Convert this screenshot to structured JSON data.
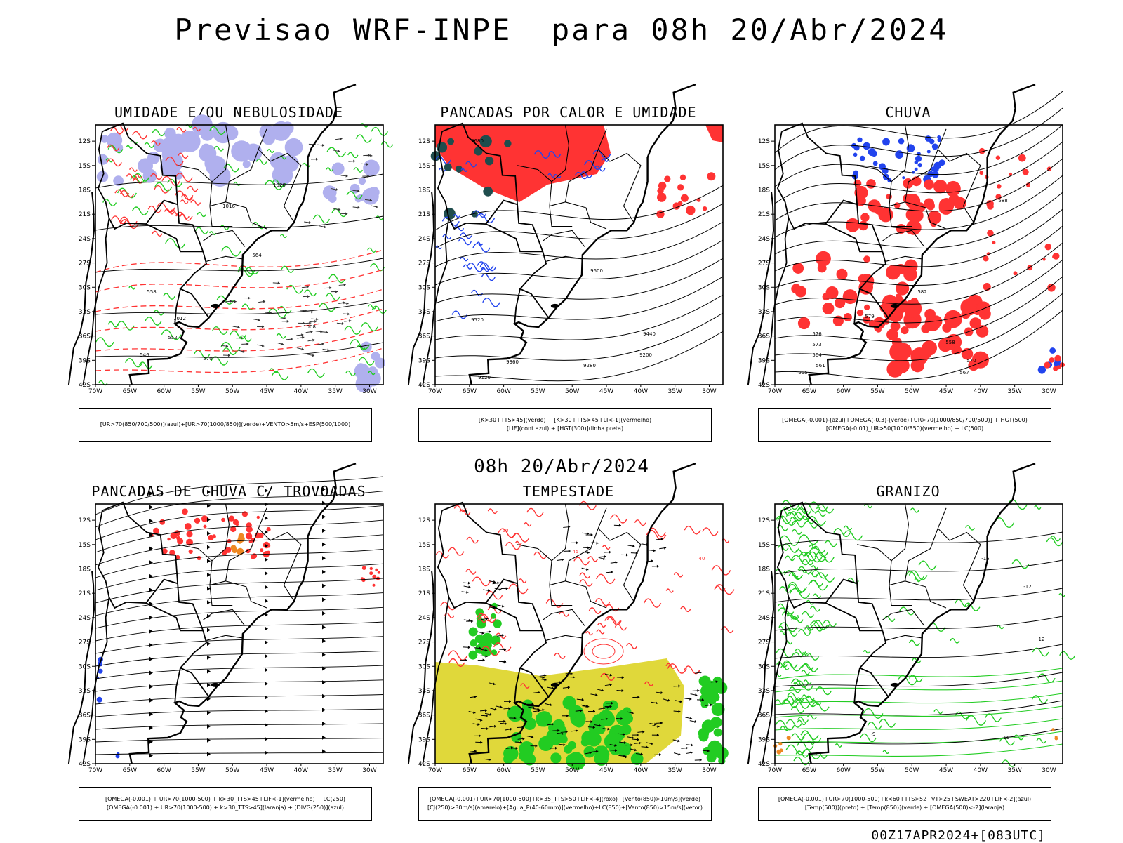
{
  "header": {
    "title": "Previsao WRF-INPE  para 08h 20/Abr/2024",
    "middle_time": "08h 20/Abr/2024",
    "footer": "00Z17APR2024+[083UTC]"
  },
  "axes": {
    "lat_ticks": [
      "12S",
      "15S",
      "18S",
      "21S",
      "24S",
      "27S",
      "30S",
      "33S",
      "36S",
      "39S",
      "42S"
    ],
    "lon_ticks": [
      "70W",
      "65W",
      "60W",
      "55W",
      "50W",
      "45W",
      "40W",
      "35W",
      "30W"
    ]
  },
  "panels": [
    {
      "id": "umidade",
      "title": "UMIDADE E/OU NEBULOSIDADE",
      "legend": [
        "[UR>70(850/700/500)](azul)+[UR>70(1000/850)](verde)+VENTO>5m/s+ESP(500/1000)"
      ],
      "contour_labels": [
        "1020",
        "1016",
        "1012",
        "1008",
        "570",
        "564",
        "558",
        "552",
        "546"
      ]
    },
    {
      "id": "pancadas-calor",
      "title": "PANCADAS POR CALOR E UMIDADE",
      "legend": [
        "[K>30+TTS>45](verde) + [K>30+TTS>45+LI<-1](vermelho)",
        "[LIF](cont.azul) + [HGT(300)](linha preta)"
      ],
      "contour_labels": [
        "9680",
        "9600",
        "9520",
        "9440",
        "9360",
        "9280",
        "9200",
        "9120"
      ]
    },
    {
      "id": "chuva",
      "title": "CHUVA",
      "legend": [
        "[OMEGA(-0.001)-(azul)+OMEGA(-0.3)-(verde)+UR>70(1000/850/700/500)] + HGT(500)",
        "[OMEGA(-0.01)_UR>50(1000/850)(vermelho) + LC(500)"
      ],
      "contour_labels": [
        "588",
        "582",
        "579",
        "576",
        "573",
        "570",
        "567",
        "564",
        "561",
        "558",
        "555"
      ]
    },
    {
      "id": "trovoadas",
      "title": "PANCADAS DE CHUVA C/ TROVOADAS",
      "legend": [
        "[OMEGA(-0.001) + UR>70(1000-500) + k>30_TTS>45+LIF<-1](vermelho) + LC(250)",
        "[OMEGA(-0.001) + UR>70(1000-500) + k>30_TTS>45](laranja) + [DIVG(250)](azul)"
      ],
      "contour_labels": []
    },
    {
      "id": "tempestade",
      "title": "TEMPESTADE",
      "legend": [
        "[OMEGA(-0.001)+UR>70(1000-500)+k>35_TTS>50+LIF<-4](roxo)+[Vento(850)>10m/s](verde)",
        "[CJ(250)>30m/s](amarelo)+[Agua_P(40-60mm)](vermelho)+LC(850)+[Vento(850)>15m/s](vetor)"
      ],
      "contour_labels": [
        "50",
        "45",
        "40"
      ]
    },
    {
      "id": "granizo",
      "title": "GRANIZO",
      "legend": [
        "[OMEGA(-0.001)+UR>70(1000-500)+k<60+TTS>52+VT>25+SWEAT>220+LIF<-2](azul)",
        "[Temp(500)](preto) + [Temp(850)](verde) + [OMEGA(500)<-2](laranja)"
      ],
      "contour_labels": [
        "-15",
        "-12",
        "-9",
        "15",
        "12"
      ]
    }
  ],
  "colors": {
    "blue_shade": "#b0b0ee",
    "green": "#22cc22",
    "red": "#ff3333",
    "dark_teal": "#1f4d4d",
    "yellow": "#e0d83a",
    "orange": "#ee8822",
    "blue": "#2244ee"
  }
}
